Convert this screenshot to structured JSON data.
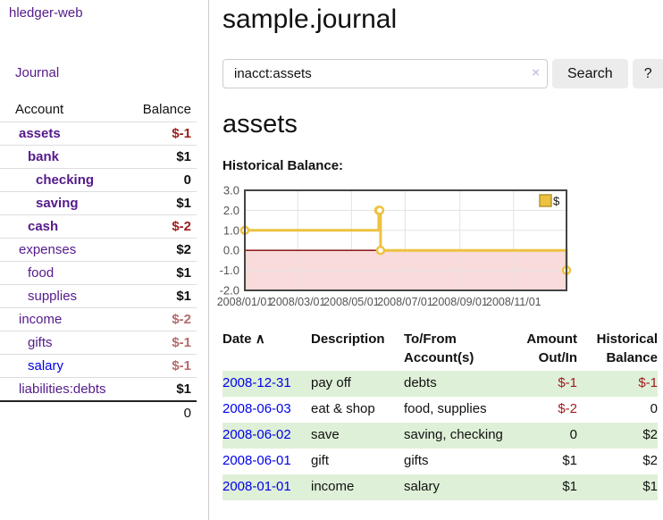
{
  "app": {
    "title": "hledger-web"
  },
  "sidebar": {
    "journal_link": "Journal",
    "accounts": {
      "header_account": "Account",
      "header_balance": "Balance",
      "rows": [
        {
          "name": "assets",
          "balance": "$-1"
        },
        {
          "name": "bank",
          "balance": "$1"
        },
        {
          "name": "checking",
          "balance": "0"
        },
        {
          "name": "saving",
          "balance": "$1"
        },
        {
          "name": "cash",
          "balance": "$-2"
        },
        {
          "name": "expenses",
          "balance": "$2"
        },
        {
          "name": "food",
          "balance": "$1"
        },
        {
          "name": "supplies",
          "balance": "$1"
        },
        {
          "name": "income",
          "balance": "$-2"
        },
        {
          "name": "gifts",
          "balance": "$-1"
        },
        {
          "name": "salary",
          "balance": "$-1"
        },
        {
          "name": "liabilities:debts",
          "balance": "$1"
        }
      ],
      "total": "0"
    }
  },
  "header": {
    "title": "sample.journal"
  },
  "search": {
    "value": "inacct:assets",
    "clear_icon": "×",
    "button_label": "Search",
    "help_label": "?"
  },
  "main": {
    "account_heading": "assets",
    "chart_label": "Historical Balance:"
  },
  "chart_data": {
    "type": "line",
    "subtype": "step-after",
    "title": "Historical Balance",
    "series": [
      {
        "name": "$",
        "color": "#edc240",
        "points": [
          [
            "2008-01-01",
            1
          ],
          [
            "2008-06-01",
            2
          ],
          [
            "2008-06-02",
            2
          ],
          [
            "2008-06-03",
            0
          ],
          [
            "2008-12-31",
            -1
          ]
        ]
      }
    ],
    "ylim": [
      -2,
      3
    ],
    "y_ticks": [
      3,
      2,
      1,
      0,
      -1,
      -2
    ],
    "x_ticks": [
      "2008/01/01",
      "2008/03/01",
      "2008/05/01",
      "2008/07/01",
      "2008/09/01",
      "2008/11/01"
    ],
    "legend": "$",
    "legend_position": "top-right",
    "grid": true,
    "colors": {
      "grid_line": "#e3e3e3",
      "border": "#454545",
      "zero_line": "#800000",
      "negative_region": "#f9dbdb",
      "axis_text": "#545454",
      "legend_swatch_border": "#b8962e",
      "marker_fill": "#ffffff"
    }
  },
  "register": {
    "headers": {
      "date": "Date",
      "sort_icon": "∧",
      "description": "Description",
      "accounts": "To/From Account(s)",
      "amount": "Amount Out/In",
      "balance": "Historical Balance"
    },
    "rows": [
      {
        "date": "2008-12-31",
        "description": "pay off",
        "accounts": "debts",
        "amount": "$-1",
        "balance": "$-1"
      },
      {
        "date": "2008-06-03",
        "description": "eat & shop",
        "accounts": "food, supplies",
        "amount": "$-2",
        "balance": "0"
      },
      {
        "date": "2008-06-02",
        "description": "save",
        "accounts": "saving, checking",
        "amount": "0",
        "balance": "$2"
      },
      {
        "date": "2008-06-01",
        "description": "gift",
        "accounts": "gifts",
        "amount": "$1",
        "balance": "$2"
      },
      {
        "date": "2008-01-01",
        "description": "income",
        "accounts": "salary",
        "amount": "$1",
        "balance": "$1"
      }
    ]
  }
}
